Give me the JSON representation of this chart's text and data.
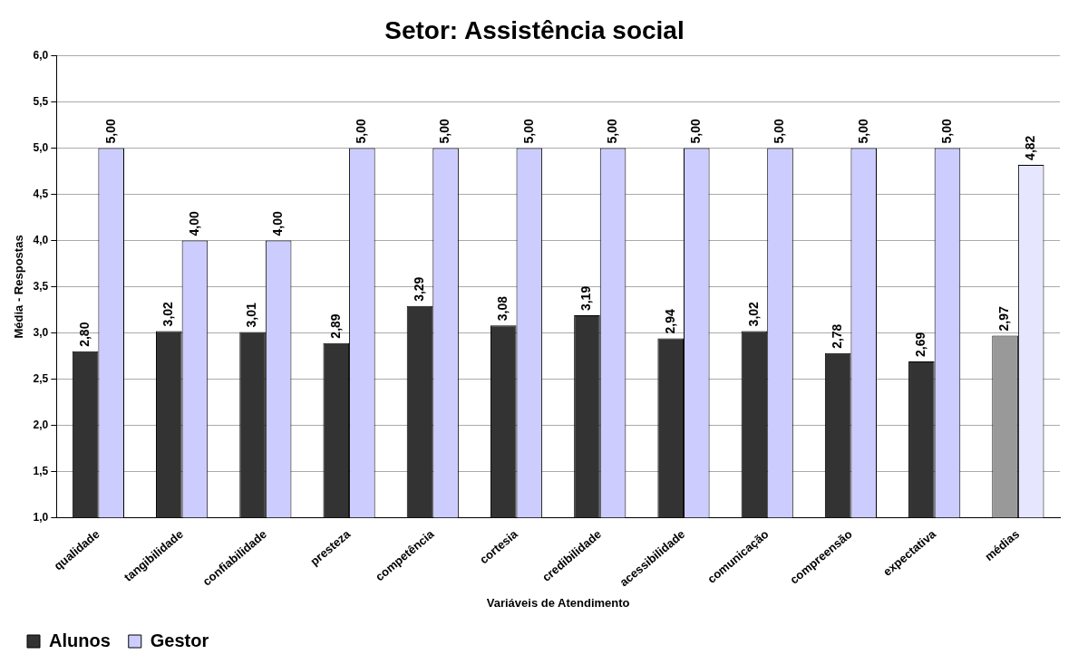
{
  "chart_data": {
    "type": "bar",
    "title": "Setor: Assistência social",
    "xlabel": "Variáveis de Atendimento",
    "ylabel": "Média - Respostas",
    "categories": [
      "qualidade",
      "tangibilidade",
      "confiabilidade",
      "presteza",
      "competência",
      "cortesia",
      "credibilidade",
      "acessibilidade",
      "comunicação",
      "compreensão",
      "expectativa",
      "médias"
    ],
    "series": [
      {
        "name": "Alunos",
        "color": "#333333",
        "colors": [
          "#333333",
          "#333333",
          "#333333",
          "#333333",
          "#333333",
          "#333333",
          "#333333",
          "#333333",
          "#333333",
          "#333333",
          "#333333",
          "#999999"
        ],
        "values": [
          2.8,
          3.02,
          3.01,
          2.89,
          3.29,
          3.08,
          3.19,
          2.94,
          3.02,
          2.78,
          2.69,
          2.97
        ],
        "value_labels": [
          "2,80",
          "3,02",
          "3,01",
          "2,89",
          "3,29",
          "3,08",
          "3,19",
          "2,94",
          "3,02",
          "2,78",
          "2,69",
          "2,97"
        ]
      },
      {
        "name": "Gestor",
        "color": "#ccccff",
        "colors": [
          "#ccccff",
          "#ccccff",
          "#ccccff",
          "#ccccff",
          "#ccccff",
          "#ccccff",
          "#ccccff",
          "#ccccff",
          "#ccccff",
          "#ccccff",
          "#ccccff",
          "#e6e6ff"
        ],
        "values": [
          5.0,
          4.0,
          4.0,
          5.0,
          5.0,
          5.0,
          5.0,
          5.0,
          5.0,
          5.0,
          5.0,
          4.82
        ],
        "value_labels": [
          "5,00",
          "4,00",
          "4,00",
          "5,00",
          "5,00",
          "5,00",
          "5,00",
          "5,00",
          "5,00",
          "5,00",
          "5,00",
          "4,82"
        ]
      }
    ],
    "ylim": [
      1,
      6
    ],
    "yticks": [
      {
        "value": 1,
        "label": "1,0"
      },
      {
        "value": 1.5,
        "label": "1,5"
      },
      {
        "value": 2,
        "label": "2,0"
      },
      {
        "value": 2.5,
        "label": "2,5"
      },
      {
        "value": 3,
        "label": "3,0"
      },
      {
        "value": 3.5,
        "label": "3,5"
      },
      {
        "value": 4,
        "label": "4,0"
      },
      {
        "value": 4.5,
        "label": "4,5"
      },
      {
        "value": 5,
        "label": "5,0"
      },
      {
        "value": 5.5,
        "label": "5,5"
      },
      {
        "value": 6,
        "label": "6,0"
      }
    ],
    "grid": "y",
    "legend": "bottom left"
  }
}
